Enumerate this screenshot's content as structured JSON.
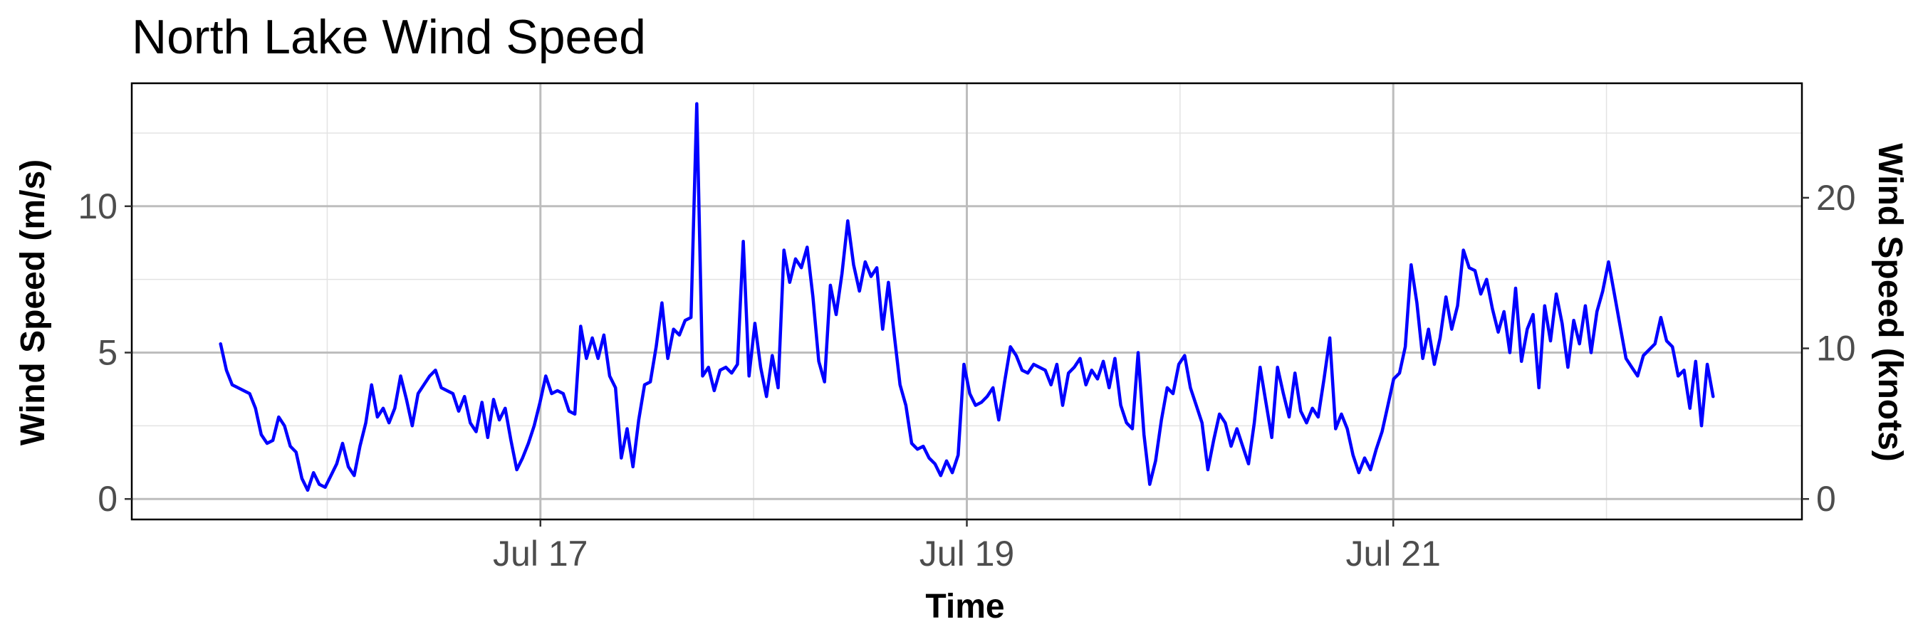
{
  "chart_data": {
    "type": "line",
    "title": "North Lake Wind Speed",
    "xlabel": "Time",
    "ylabel": "Wind Speed (m/s)",
    "ylabel_right": "Wind Speed (knots)",
    "x_start": "Jul 15 12:00",
    "x_end": "Jul 22 12:00",
    "xlim": [
      "Jul 15 02:00",
      "Jul 22 22:00"
    ],
    "ylim": [
      -0.7,
      14.2
    ],
    "y_ticks": [
      0,
      5,
      10
    ],
    "y_right_ticks": [
      0,
      10,
      20
    ],
    "x_ticks": [
      "Jul 17",
      "Jul 19",
      "Jul 21"
    ],
    "grid": true,
    "legend": "none",
    "line_color": "#0000ff",
    "series": [
      {
        "values": [
          5.3,
          4.4,
          3.9,
          3.8,
          3.7,
          3.6,
          3.1,
          2.2,
          1.9,
          2.0,
          2.8,
          2.5,
          1.8,
          1.6,
          0.7,
          0.3,
          0.9,
          0.5,
          0.4,
          0.8,
          1.2,
          1.9,
          1.1,
          0.8,
          1.8,
          2.6,
          3.9,
          2.8,
          3.1,
          2.6,
          3.1,
          4.2,
          3.4,
          2.5,
          3.6,
          3.9,
          4.2,
          4.4,
          3.8,
          3.7,
          3.6,
          3.0,
          3.5,
          2.6,
          2.3,
          3.3,
          2.1,
          3.4,
          2.7,
          3.1,
          2.0,
          1.0,
          1.4,
          1.9,
          2.5,
          3.3,
          4.2,
          3.6,
          3.7,
          3.6,
          3.0,
          2.9,
          5.9,
          4.8,
          5.5,
          4.8,
          5.6,
          4.2,
          3.8,
          1.4,
          2.4,
          1.1,
          2.7,
          3.9,
          4.0,
          5.2,
          6.7,
          4.8,
          5.8,
          5.6,
          6.1,
          6.2,
          13.5,
          4.2,
          4.5,
          3.7,
          4.4,
          4.5,
          4.3,
          4.6,
          8.8,
          4.2,
          6.0,
          4.5,
          3.5,
          4.9,
          3.8,
          8.5,
          7.4,
          8.2,
          7.9,
          8.6,
          6.9,
          4.7,
          4.0,
          7.3,
          6.3,
          7.7,
          9.5,
          8.0,
          7.1,
          8.1,
          7.6,
          7.9,
          5.8,
          7.4,
          5.6,
          3.9,
          3.2,
          1.9,
          1.7,
          1.8,
          1.4,
          1.2,
          0.8,
          1.3,
          0.9,
          1.5,
          4.6,
          3.6,
          3.2,
          3.3,
          3.5,
          3.8,
          2.7,
          4.0,
          5.2,
          4.9,
          4.4,
          4.3,
          4.6,
          4.5,
          4.4,
          3.9,
          4.6,
          3.2,
          4.3,
          4.5,
          4.8,
          3.9,
          4.4,
          4.1,
          4.7,
          3.8,
          4.8,
          3.2,
          2.6,
          2.4,
          5.0,
          2.2,
          0.5,
          1.3,
          2.7,
          3.8,
          3.6,
          4.6,
          4.9,
          3.8,
          3.2,
          2.6,
          1.0,
          2.0,
          2.9,
          2.6,
          1.8,
          2.4,
          1.8,
          1.2,
          2.6,
          4.5,
          3.3,
          2.1,
          4.5,
          3.6,
          2.8,
          4.3,
          3.0,
          2.6,
          3.1,
          2.8,
          4.1,
          5.5,
          2.4,
          2.9,
          2.4,
          1.5,
          0.9,
          1.4,
          1.0,
          1.7,
          2.3,
          3.2,
          4.1,
          4.3,
          5.2,
          8.0,
          6.7,
          4.8,
          5.8,
          4.6,
          5.5,
          6.9,
          5.8,
          6.6,
          8.5,
          7.9,
          7.8,
          7.0,
          7.5,
          6.5,
          5.7,
          6.4,
          5.0,
          7.2,
          4.7,
          5.8,
          6.3,
          3.8,
          6.6,
          5.4,
          7.0,
          6.0,
          4.5,
          6.1,
          5.3,
          6.6,
          5.0,
          6.4,
          7.1,
          8.1,
          7.0,
          5.9,
          4.8,
          4.5,
          4.2,
          4.9,
          5.1,
          5.3,
          6.2,
          5.4,
          5.2,
          4.2,
          4.4,
          3.1,
          4.7,
          2.5,
          4.6,
          3.5
        ]
      }
    ]
  }
}
